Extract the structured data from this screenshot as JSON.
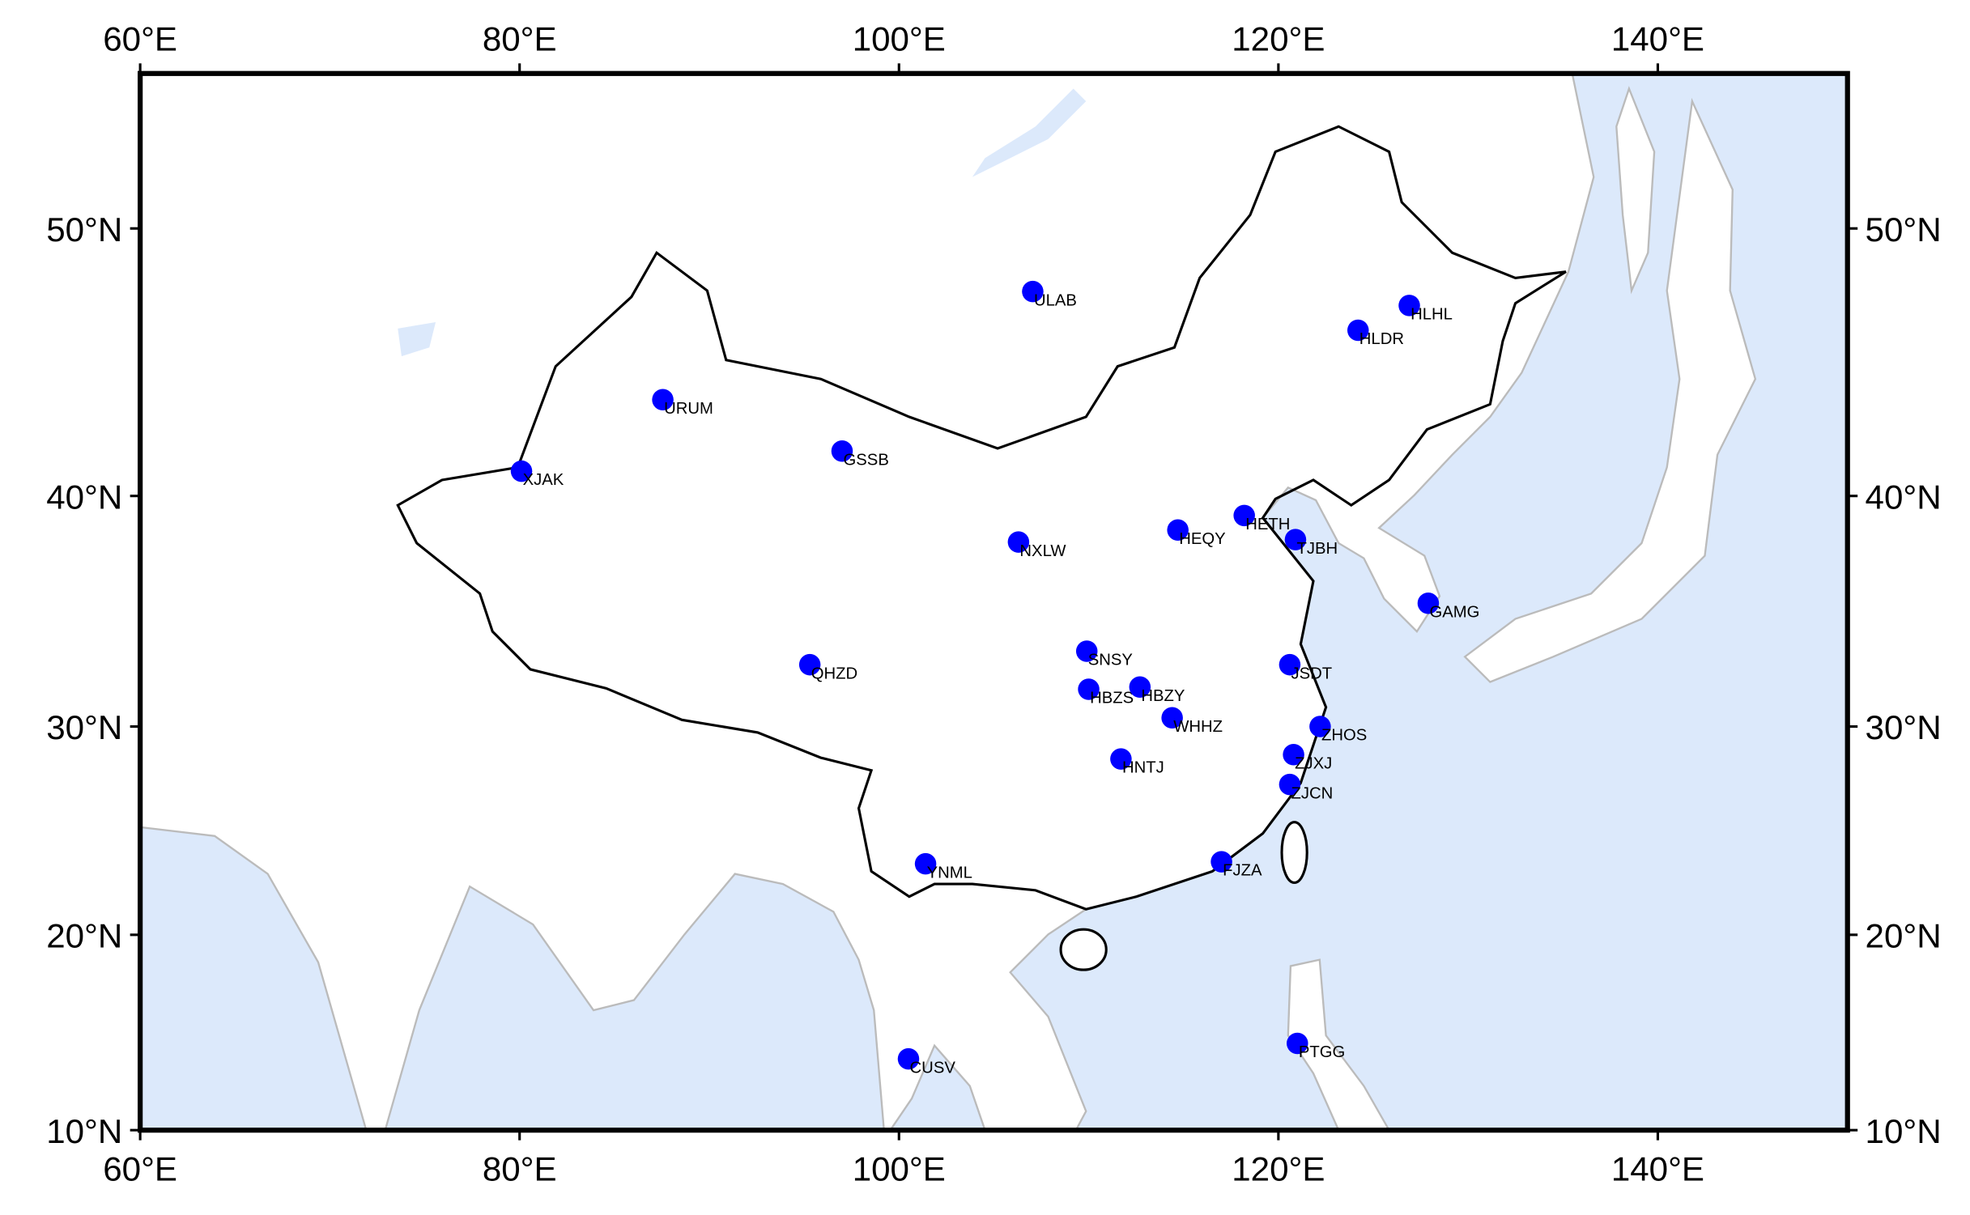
{
  "chart_data": {
    "type": "map",
    "projection": "mercator",
    "xlim": [
      60,
      150
    ],
    "ylim": [
      10,
      55
    ],
    "xticks": [
      {
        "value": 60,
        "label": "60°E"
      },
      {
        "value": 80,
        "label": "80°E"
      },
      {
        "value": 100,
        "label": "100°E"
      },
      {
        "value": 120,
        "label": "120°E"
      },
      {
        "value": 140,
        "label": "140°E"
      }
    ],
    "yticks": [
      {
        "value": 10,
        "label": "10°N"
      },
      {
        "value": 20,
        "label": "20°N"
      },
      {
        "value": 30,
        "label": "30°N"
      },
      {
        "value": 40,
        "label": "40°N"
      },
      {
        "value": 50,
        "label": "50°N"
      }
    ],
    "color": "#0000ff",
    "ocean_color": "#dce9fb",
    "stations": {
      "names": [
        "ULAB",
        "HLHL",
        "HLDR",
        "URUM",
        "GSSB",
        "XJAK",
        "NXLW",
        "HEQY",
        "HETH",
        "TJBH",
        "GAMG",
        "QHZD",
        "SNSY",
        "HBZS",
        "HBZY",
        "WHHZ",
        "JSDT",
        "ZHOS",
        "ZJXJ",
        "ZJCN",
        "HNTJ",
        "FJZA",
        "YNML",
        "CUSV",
        "PTGG"
      ],
      "lon": [
        107.05,
        126.9,
        124.2,
        87.55,
        97.0,
        80.1,
        106.3,
        114.7,
        118.2,
        120.9,
        127.9,
        95.3,
        109.9,
        110.0,
        112.7,
        114.4,
        120.6,
        122.2,
        120.8,
        120.6,
        111.7,
        117.0,
        101.4,
        100.5,
        121.0
      ],
      "lat": [
        47.8,
        47.3,
        46.4,
        43.8,
        41.8,
        41.0,
        38.1,
        38.6,
        39.2,
        38.2,
        35.5,
        32.8,
        33.4,
        31.7,
        31.8,
        30.4,
        32.8,
        30.0,
        28.7,
        27.3,
        28.5,
        23.6,
        23.5,
        13.7,
        14.5
      ]
    }
  }
}
